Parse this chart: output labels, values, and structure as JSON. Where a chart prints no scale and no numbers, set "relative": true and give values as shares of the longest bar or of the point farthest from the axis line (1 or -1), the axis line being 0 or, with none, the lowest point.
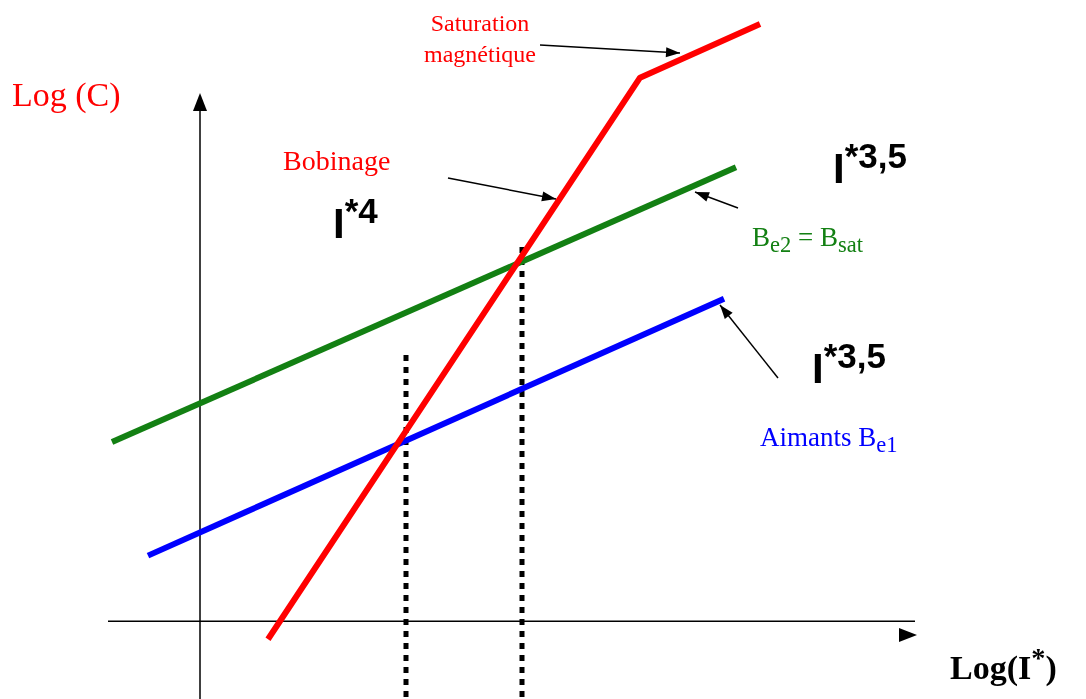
{
  "chart_data": {
    "type": "line",
    "relative": true,
    "ylabel": "Log (C)",
    "marker": "none",
    "line_style": "solid",
    "categories": [
      null,
      null,
      null,
      null,
      null,
      null,
      null,
      null,
      null,
      null,
      null,
      null,
      null,
      null,
      null,
      null,
      null,
      null,
      null,
      null,
      null,
      null,
      null,
      null,
      null,
      null,
      null,
      null,
      null,
      null,
      null,
      null,
      null,
      null,
      null,
      null,
      null,
      null,
      null,
      null,
      null,
      null,
      null,
      null,
      null,
      null,
      null,
      null,
      null,
      null,
      null,
      null,
      null,
      null,
      null
    ],
    "series": [
      {
        "name": "Bobinage",
        "color": "#ff0000",
        "values": [
          null,
          null,
          null,
          null,
          null,
          null,
          null,
          null,
          null,
          null,
          null,
          null,
          null,
          -0.03,
          null,
          null,
          null,
          null,
          null,
          null,
          null,
          null,
          null,
          null,
          null,
          null,
          null,
          null,
          null,
          null,
          null,
          null,
          null,
          null,
          null,
          null,
          null,
          null,
          null,
          null,
          null,
          null,
          null,
          null,
          0.91,
          null,
          null,
          null,
          null,
          null,
          null,
          null,
          null,
          null,
          1
        ]
      },
      {
        "name": "B$_{e2}$ = B$_{sat}$",
        "color": "#138013",
        "values": [
          0.3,
          null,
          null,
          null,
          null,
          null,
          null,
          null,
          null,
          null,
          null,
          null,
          null,
          null,
          null,
          null,
          null,
          null,
          null,
          null,
          null,
          null,
          null,
          null,
          null,
          null,
          null,
          null,
          null,
          null,
          null,
          null,
          null,
          null,
          null,
          null,
          null,
          null,
          null,
          null,
          null,
          null,
          null,
          null,
          null,
          null,
          null,
          null,
          null,
          null,
          null,
          null,
          0.76,
          null,
          null
        ]
      },
      {
        "name": "Aimants B$_{e1}$",
        "color": "#0000ff",
        "values": [
          null,
          null,
          null,
          0.11,
          null,
          null,
          null,
          null,
          null,
          null,
          null,
          null,
          null,
          null,
          null,
          null,
          null,
          null,
          null,
          null,
          null,
          null,
          null,
          null,
          null,
          null,
          null,
          null,
          null,
          null,
          null,
          null,
          null,
          null,
          null,
          null,
          null,
          null,
          null,
          null,
          null,
          null,
          null,
          null,
          null,
          null,
          null,
          null,
          null,
          null,
          null,
          0.54,
          null,
          null,
          null
        ]
      }
    ],
    "ref_lines": [
      {
        "axis": "x",
        "color": "#000000",
        "line_style": "dotted"
      },
      {
        "axis": "x",
        "color": "#000000",
        "line_style": "dotted"
      }
    ],
    "annotations": [
      "Saturation magnétique",
      "I$^{*4}$",
      "I$^{*3,5}$",
      "I$^{*3,5}$",
      "Log(I$^{*}$)"
    ]
  }
}
